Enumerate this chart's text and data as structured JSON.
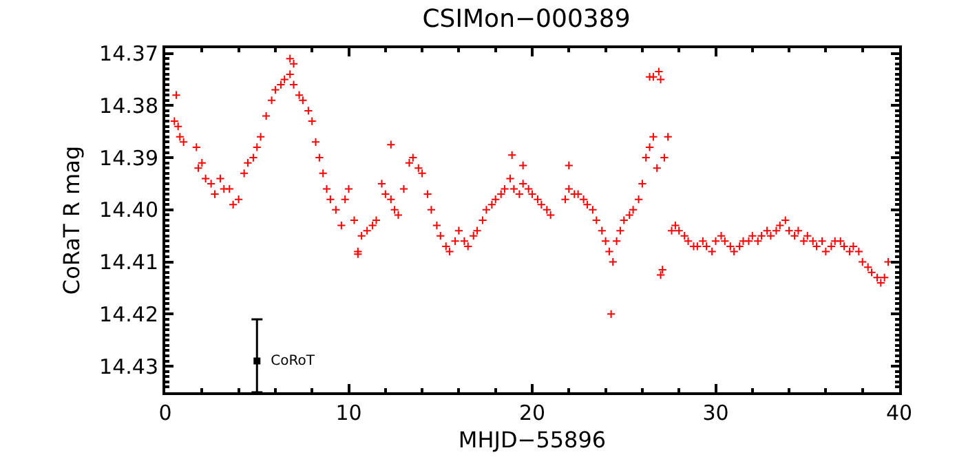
{
  "chart_data": {
    "type": "scatter",
    "title": "CSIMon−000389",
    "xlabel": "MHJD−55896",
    "ylabel": "CoRaT R mag",
    "marker": "cross",
    "grid": false,
    "xlim": [
      0,
      40
    ],
    "xticks": [
      0,
      10,
      20,
      30,
      40
    ],
    "ylim": [
      14.435,
      14.369
    ],
    "yticks": [
      {
        "value": 14.37,
        "label": "14.37"
      },
      {
        "value": 14.38,
        "label": "14.38"
      },
      {
        "value": 14.39,
        "label": "14.39"
      },
      {
        "value": 14.4,
        "label": "14.40"
      },
      {
        "value": 14.41,
        "label": "14.41"
      },
      {
        "value": 14.42,
        "label": "14.42"
      },
      {
        "value": 14.43,
        "label": "14.43"
      }
    ],
    "annotations": [
      {
        "text": "CoRoT",
        "x": 5,
        "y": 14.429
      }
    ],
    "series": [
      {
        "color": "#ff0000",
        "x": [
          0.5,
          0.6,
          0.7,
          0.8,
          1.0,
          1.7,
          1.8,
          2.0,
          2.2,
          2.5,
          2.7,
          3.0,
          3.2,
          3.5,
          3.7,
          4.0,
          4.3,
          4.5,
          4.8,
          5.0,
          5.2,
          5.5,
          5.8,
          6.0,
          6.3,
          6.5,
          6.8,
          7.0,
          7.3,
          7.5,
          7.8,
          8.0,
          8.2,
          8.4,
          8.6,
          8.8,
          9.0,
          9.3,
          9.6,
          9.8,
          10.0,
          10.3,
          10.5,
          10.7,
          11.0,
          11.3,
          11.5,
          11.8,
          12.0,
          12.3,
          12.5,
          12.7,
          13.0,
          13.3,
          13.5,
          13.8,
          14.0,
          14.3,
          14.5,
          14.8,
          15.0,
          15.3,
          15.5,
          15.8,
          16.0,
          16.3,
          16.5,
          16.8,
          17.0,
          17.3,
          17.5,
          17.8,
          18.0,
          18.3,
          18.5,
          18.8,
          19.0,
          19.3,
          19.5,
          19.8,
          20.0,
          20.3,
          20.5,
          20.8,
          21.0,
          21.8,
          22.0,
          22.3,
          22.5,
          22.8,
          23.0,
          23.3,
          23.5,
          23.8,
          24.0,
          24.2,
          24.4,
          24.6,
          24.8,
          25.0,
          25.3,
          25.5,
          25.8,
          26.0,
          26.2,
          26.4,
          26.6,
          26.8,
          27.0,
          27.2,
          27.4,
          27.6,
          27.8,
          28.0,
          28.3,
          28.5,
          28.8,
          29.0,
          29.3,
          29.5,
          29.8,
          30.0,
          30.3,
          30.5,
          30.8,
          31.0,
          31.3,
          31.5,
          31.8,
          32.0,
          32.3,
          32.5,
          32.8,
          33.0,
          33.3,
          33.5,
          33.8,
          34.0,
          34.3,
          34.5,
          34.8,
          35.0,
          35.3,
          35.5,
          35.8,
          36.0,
          36.3,
          36.5,
          36.8,
          37.0,
          37.3,
          37.5,
          37.8,
          38.0,
          38.3,
          38.5,
          38.8,
          39.0,
          39.2,
          39.4
        ],
        "values": [
          14.383,
          14.378,
          14.384,
          14.386,
          14.387,
          14.388,
          14.392,
          14.391,
          14.394,
          14.395,
          14.397,
          14.394,
          14.396,
          14.396,
          14.399,
          14.398,
          14.393,
          14.391,
          14.39,
          14.388,
          14.386,
          14.382,
          14.379,
          14.377,
          14.376,
          14.375,
          14.374,
          14.376,
          14.378,
          14.379,
          14.381,
          14.383,
          14.387,
          14.39,
          14.393,
          14.396,
          14.398,
          14.4,
          14.403,
          14.398,
          14.396,
          14.402,
          14.408,
          14.405,
          14.404,
          14.403,
          14.402,
          14.395,
          14.397,
          14.398,
          14.4,
          14.401,
          14.396,
          14.391,
          14.39,
          14.392,
          14.393,
          14.397,
          14.4,
          14.403,
          14.405,
          14.407,
          14.408,
          14.406,
          14.404,
          14.406,
          14.407,
          14.405,
          14.404,
          14.402,
          14.4,
          14.399,
          14.398,
          14.397,
          14.396,
          14.394,
          14.396,
          14.397,
          14.395,
          14.396,
          14.397,
          14.398,
          14.399,
          14.4,
          14.401,
          14.398,
          14.396,
          14.397,
          14.397,
          14.398,
          14.399,
          14.4,
          14.402,
          14.404,
          14.406,
          14.408,
          14.41,
          14.406,
          14.404,
          14.402,
          14.401,
          14.4,
          14.398,
          14.395,
          14.39,
          14.388,
          14.386,
          14.392,
          14.375,
          14.39,
          14.386,
          14.404,
          14.403,
          14.404,
          14.405,
          14.406,
          14.407,
          14.407,
          14.406,
          14.407,
          14.408,
          14.406,
          14.405,
          14.406,
          14.407,
          14.408,
          14.407,
          14.406,
          14.406,
          14.405,
          14.406,
          14.405,
          14.404,
          14.405,
          14.404,
          14.403,
          14.402,
          14.404,
          14.405,
          14.404,
          14.406,
          14.405,
          14.406,
          14.407,
          14.406,
          14.408,
          14.407,
          14.406,
          14.406,
          14.407,
          14.408,
          14.407,
          14.408,
          14.41,
          14.411,
          14.412,
          14.413,
          14.414,
          14.413,
          14.41
        ]
      },
      {
        "color": "#ff0000",
        "x": [
          6.8,
          7.0,
          10.5,
          12.3,
          18.9,
          19.5,
          22.0,
          24.3,
          26.4,
          26.6,
          26.9,
          27.1,
          27.0
        ],
        "values": [
          14.371,
          14.372,
          14.4085,
          14.3875,
          14.3895,
          14.3915,
          14.3915,
          14.42,
          14.3745,
          14.3745,
          14.3735,
          14.4115,
          14.4125
        ]
      },
      {
        "color": "#000000",
        "type": "scatter",
        "marker": "square",
        "x": [
          5
        ],
        "values": [
          14.429
        ],
        "errors": [
          [
            14.421,
            14.435
          ]
        ]
      }
    ]
  }
}
